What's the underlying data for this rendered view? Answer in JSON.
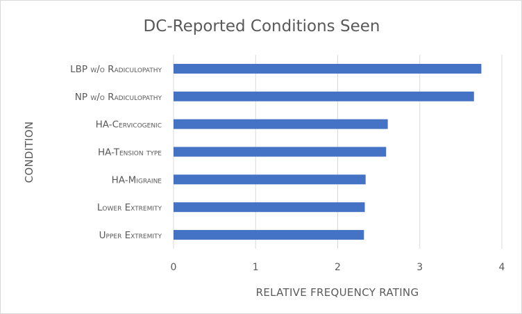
{
  "chart_data": {
    "type": "bar",
    "orientation": "horizontal",
    "title": "DC-Reported Conditions Seen",
    "xlabel": "RELATIVE FREQUENCY RATING",
    "ylabel": "CONDITION",
    "categories": [
      "LBP w/o Radiculopathy",
      "NP w/o Radiculopathy",
      "HA-Cervicogenic",
      "HA-Tension type",
      "HA-Migraine",
      "Lower Extremity",
      "Upper Extremity"
    ],
    "values": [
      3.75,
      3.66,
      2.61,
      2.59,
      2.34,
      2.33,
      2.32
    ],
    "xlim": [
      0,
      4
    ],
    "xticks": [
      "0",
      "1",
      "2",
      "3",
      "4"
    ],
    "grid": "vertical",
    "legend": "none",
    "colors": {
      "bar": "#4472c4",
      "grid": "#d9d9d9",
      "text": "#595959"
    }
  }
}
